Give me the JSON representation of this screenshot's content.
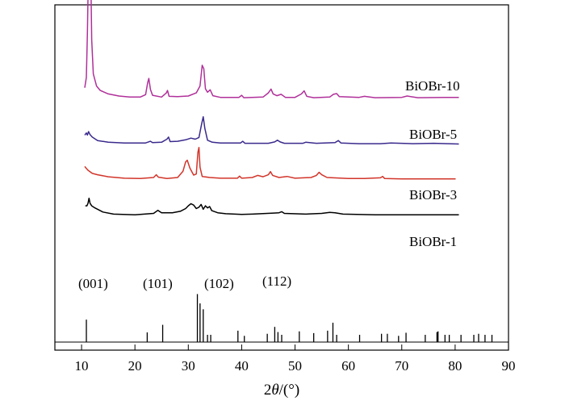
{
  "chart_data": {
    "type": "line",
    "xlabel_prefix": "2",
    "xlabel_var": "θ",
    "xlabel_suffix": "/(°)",
    "ylabel": "",
    "xlim": [
      5,
      90
    ],
    "xticks": [
      10,
      20,
      30,
      40,
      50,
      60,
      70,
      80,
      90
    ],
    "grid": false,
    "legend": "labels at right of each curve",
    "series": [
      {
        "name": "BiOBr-10",
        "color": "#b0309a",
        "points": [
          [
            10.6,
            0.76
          ],
          [
            10.9,
            0.79
          ],
          [
            11.1,
            0.92
          ],
          [
            11.3,
            1.12
          ],
          [
            11.5,
            1.27
          ],
          [
            11.7,
            1.12
          ],
          [
            11.9,
            0.9
          ],
          [
            12.2,
            0.8
          ],
          [
            12.8,
            0.765
          ],
          [
            13.5,
            0.752
          ],
          [
            15,
            0.742
          ],
          [
            17,
            0.736
          ],
          [
            19,
            0.733
          ],
          [
            21,
            0.733
          ],
          [
            22.0,
            0.74
          ],
          [
            22.4,
            0.775
          ],
          [
            22.6,
            0.787
          ],
          [
            22.9,
            0.755
          ],
          [
            23.3,
            0.738
          ],
          [
            25,
            0.733
          ],
          [
            25.9,
            0.745
          ],
          [
            26.1,
            0.752
          ],
          [
            26.4,
            0.735
          ],
          [
            28,
            0.734
          ],
          [
            30,
            0.736
          ],
          [
            31.5,
            0.745
          ],
          [
            32.2,
            0.765
          ],
          [
            32.6,
            0.825
          ],
          [
            32.9,
            0.815
          ],
          [
            33.2,
            0.757
          ],
          [
            33.6,
            0.747
          ],
          [
            34.1,
            0.754
          ],
          [
            34.6,
            0.737
          ],
          [
            36,
            0.732
          ],
          [
            39.5,
            0.732
          ],
          [
            40.0,
            0.738
          ],
          [
            40.4,
            0.731
          ],
          [
            44,
            0.733
          ],
          [
            45.0,
            0.745
          ],
          [
            45.5,
            0.756
          ],
          [
            45.9,
            0.742
          ],
          [
            46.6,
            0.737
          ],
          [
            47.4,
            0.741
          ],
          [
            48.2,
            0.732
          ],
          [
            50,
            0.732
          ],
          [
            51.2,
            0.742
          ],
          [
            51.7,
            0.751
          ],
          [
            52.2,
            0.735
          ],
          [
            53.5,
            0.731
          ],
          [
            56.5,
            0.733
          ],
          [
            57.2,
            0.741
          ],
          [
            57.8,
            0.743
          ],
          [
            58.3,
            0.734
          ],
          [
            62,
            0.732
          ],
          [
            63,
            0.735
          ],
          [
            65,
            0.731
          ],
          [
            70,
            0.732
          ],
          [
            71,
            0.736
          ],
          [
            73,
            0.731
          ],
          [
            78,
            0.732
          ],
          [
            80.7,
            0.732
          ]
        ]
      },
      {
        "name": "BiOBr-5",
        "color": "#3a2a8c",
        "points": [
          [
            10.6,
            0.623
          ],
          [
            10.9,
            0.629
          ],
          [
            11.1,
            0.623
          ],
          [
            11.3,
            0.633
          ],
          [
            11.6,
            0.624
          ],
          [
            12.0,
            0.617
          ],
          [
            13,
            0.607
          ],
          [
            15,
            0.602
          ],
          [
            18,
            0.6
          ],
          [
            22,
            0.6
          ],
          [
            22.9,
            0.605
          ],
          [
            23.3,
            0.601
          ],
          [
            25,
            0.602
          ],
          [
            26.0,
            0.611
          ],
          [
            26.3,
            0.617
          ],
          [
            26.6,
            0.604
          ],
          [
            28,
            0.605
          ],
          [
            29.5,
            0.609
          ],
          [
            30.5,
            0.614
          ],
          [
            31.3,
            0.611
          ],
          [
            32.0,
            0.616
          ],
          [
            32.5,
            0.655
          ],
          [
            32.8,
            0.676
          ],
          [
            33.1,
            0.642
          ],
          [
            33.6,
            0.608
          ],
          [
            34.5,
            0.602
          ],
          [
            36,
            0.6
          ],
          [
            39.8,
            0.6
          ],
          [
            40.2,
            0.605
          ],
          [
            40.6,
            0.599
          ],
          [
            45,
            0.599
          ],
          [
            46.2,
            0.603
          ],
          [
            46.7,
            0.608
          ],
          [
            47.2,
            0.603
          ],
          [
            48,
            0.599
          ],
          [
            51.5,
            0.599
          ],
          [
            52,
            0.602
          ],
          [
            54,
            0.599
          ],
          [
            57.5,
            0.601
          ],
          [
            58.1,
            0.607
          ],
          [
            58.6,
            0.6
          ],
          [
            62,
            0.598
          ],
          [
            66,
            0.598
          ],
          [
            68,
            0.6
          ],
          [
            72,
            0.598
          ],
          [
            76,
            0.599
          ],
          [
            80.7,
            0.597
          ]
        ]
      },
      {
        "name": "BiOBr-3",
        "color": "#d2352a",
        "points": [
          [
            10.6,
            0.532
          ],
          [
            10.8,
            0.528
          ],
          [
            11.2,
            0.521
          ],
          [
            12,
            0.512
          ],
          [
            13,
            0.508
          ],
          [
            15,
            0.502
          ],
          [
            18,
            0.498
          ],
          [
            21,
            0.497
          ],
          [
            23.5,
            0.5
          ],
          [
            24.0,
            0.508
          ],
          [
            24.4,
            0.501
          ],
          [
            26,
            0.497
          ],
          [
            28,
            0.5
          ],
          [
            29.0,
            0.518
          ],
          [
            29.5,
            0.545
          ],
          [
            29.8,
            0.55
          ],
          [
            30.3,
            0.527
          ],
          [
            31.0,
            0.507
          ],
          [
            31.5,
            0.51
          ],
          [
            31.8,
            0.573
          ],
          [
            32.0,
            0.587
          ],
          [
            32.2,
            0.53
          ],
          [
            32.6,
            0.503
          ],
          [
            34,
            0.5
          ],
          [
            36,
            0.498
          ],
          [
            39.2,
            0.498
          ],
          [
            39.6,
            0.504
          ],
          [
            40.0,
            0.498
          ],
          [
            42,
            0.5
          ],
          [
            43,
            0.506
          ],
          [
            44,
            0.502
          ],
          [
            45.0,
            0.508
          ],
          [
            45.4,
            0.517
          ],
          [
            45.8,
            0.506
          ],
          [
            47,
            0.5
          ],
          [
            48.5,
            0.503
          ],
          [
            50,
            0.498
          ],
          [
            53,
            0.5
          ],
          [
            54.0,
            0.506
          ],
          [
            54.5,
            0.515
          ],
          [
            55.0,
            0.508
          ],
          [
            56,
            0.5
          ],
          [
            60,
            0.497
          ],
          [
            63,
            0.497
          ],
          [
            66.0,
            0.499
          ],
          [
            66.4,
            0.503
          ],
          [
            66.8,
            0.497
          ],
          [
            70,
            0.496
          ],
          [
            75,
            0.496
          ],
          [
            80.1,
            0.496
          ]
        ]
      },
      {
        "name": "BiOBr-1",
        "color": "#000000",
        "points": [
          [
            10.7,
            0.418
          ],
          [
            11.0,
            0.418
          ],
          [
            11.2,
            0.425
          ],
          [
            11.4,
            0.44
          ],
          [
            11.6,
            0.425
          ],
          [
            11.9,
            0.418
          ],
          [
            12.5,
            0.412
          ],
          [
            14,
            0.4
          ],
          [
            16,
            0.394
          ],
          [
            20,
            0.392
          ],
          [
            23.5,
            0.396
          ],
          [
            24.3,
            0.405
          ],
          [
            25,
            0.398
          ],
          [
            27,
            0.398
          ],
          [
            28.5,
            0.402
          ],
          [
            29.5,
            0.41
          ],
          [
            30.0,
            0.418
          ],
          [
            30.5,
            0.424
          ],
          [
            31.0,
            0.42
          ],
          [
            31.5,
            0.41
          ],
          [
            32.0,
            0.414
          ],
          [
            32.4,
            0.422
          ],
          [
            32.8,
            0.408
          ],
          [
            33.2,
            0.418
          ],
          [
            33.6,
            0.412
          ],
          [
            34.0,
            0.416
          ],
          [
            34.4,
            0.404
          ],
          [
            35.5,
            0.398
          ],
          [
            37,
            0.395
          ],
          [
            40,
            0.393
          ],
          [
            42,
            0.394
          ],
          [
            46,
            0.397
          ],
          [
            47,
            0.398
          ],
          [
            47.5,
            0.401
          ],
          [
            48,
            0.396
          ],
          [
            52,
            0.394
          ],
          [
            55,
            0.396
          ],
          [
            56.5,
            0.399
          ],
          [
            57.5,
            0.398
          ],
          [
            59,
            0.394
          ],
          [
            65,
            0.392
          ],
          [
            70,
            0.392
          ],
          [
            75,
            0.392
          ],
          [
            80.7,
            0.392
          ]
        ]
      }
    ],
    "reference_lines": [
      {
        "x": 10.9,
        "h": 0.065
      },
      {
        "x": 22.3,
        "h": 0.028
      },
      {
        "x": 25.2,
        "h": 0.05
      },
      {
        "x": 31.7,
        "h": 0.139
      },
      {
        "x": 32.2,
        "h": 0.112
      },
      {
        "x": 32.8,
        "h": 0.095
      },
      {
        "x": 33.6,
        "h": 0.021
      },
      {
        "x": 34.2,
        "h": 0.021
      },
      {
        "x": 39.3,
        "h": 0.033
      },
      {
        "x": 40.5,
        "h": 0.018
      },
      {
        "x": 44.8,
        "h": 0.024
      },
      {
        "x": 46.2,
        "h": 0.044
      },
      {
        "x": 46.8,
        "h": 0.029
      },
      {
        "x": 47.5,
        "h": 0.021
      },
      {
        "x": 50.8,
        "h": 0.031
      },
      {
        "x": 53.5,
        "h": 0.026
      },
      {
        "x": 56.1,
        "h": 0.033
      },
      {
        "x": 57.1,
        "h": 0.056
      },
      {
        "x": 57.8,
        "h": 0.021
      },
      {
        "x": 62.1,
        "h": 0.021
      },
      {
        "x": 66.2,
        "h": 0.024
      },
      {
        "x": 67.3,
        "h": 0.024
      },
      {
        "x": 69.4,
        "h": 0.018
      },
      {
        "x": 70.8,
        "h": 0.027
      },
      {
        "x": 74.4,
        "h": 0.021
      },
      {
        "x": 76.6,
        "h": 0.029
      },
      {
        "x": 76.8,
        "h": 0.031
      },
      {
        "x": 78.1,
        "h": 0.021
      },
      {
        "x": 78.9,
        "h": 0.021
      },
      {
        "x": 81.1,
        "h": 0.021
      },
      {
        "x": 83.5,
        "h": 0.021
      },
      {
        "x": 84.4,
        "h": 0.024
      },
      {
        "x": 85.6,
        "h": 0.021
      },
      {
        "x": 86.9,
        "h": 0.021
      }
    ],
    "annotations": [
      "(001)",
      "(101)",
      "(102)",
      "(112)"
    ]
  }
}
